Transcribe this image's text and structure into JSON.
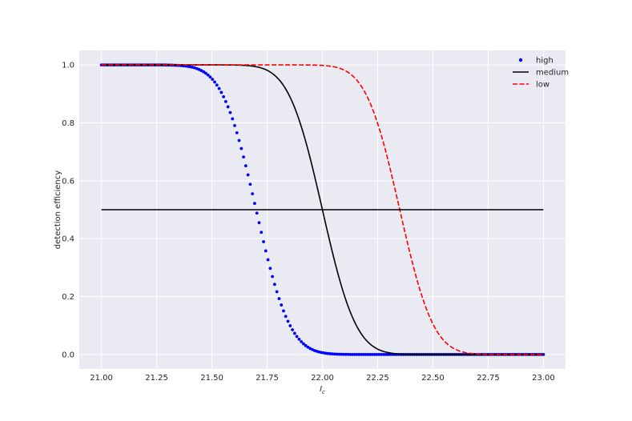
{
  "chart_data": {
    "type": "line",
    "xlabel": "I",
    "xlabel_sub": "c",
    "ylabel": "detection efficiency",
    "xlim": [
      20.9,
      23.1
    ],
    "ylim": [
      -0.05,
      1.05
    ],
    "xticks": [
      21.0,
      21.25,
      21.5,
      21.75,
      22.0,
      22.25,
      22.5,
      22.75,
      23.0
    ],
    "xtick_labels": [
      "21.00",
      "21.25",
      "21.50",
      "21.75",
      "22.00",
      "22.25",
      "22.50",
      "22.75",
      "23.00"
    ],
    "yticks": [
      0.0,
      0.2,
      0.4,
      0.6,
      0.8,
      1.0
    ],
    "ytick_labels": [
      "0.0",
      "0.2",
      "0.4",
      "0.6",
      "0.8",
      "1.0"
    ],
    "grid": true,
    "background_color": "#eaeaf2",
    "grid_color": "#ffffff",
    "legend_position": "top-right",
    "x_range": [
      21.0,
      23.0
    ],
    "series": [
      {
        "name": "high",
        "style": "dotted-markers",
        "color": "#0000ff",
        "curve": "1 - Φ((x - 21.70)/0.12)",
        "x": [
          21.0,
          21.2,
          21.4,
          21.5,
          21.6,
          21.65,
          21.7,
          21.75,
          21.8,
          21.9,
          22.0,
          22.2,
          22.5,
          23.0
        ],
        "y": [
          1.0,
          1.0,
          0.994,
          0.952,
          0.798,
          0.66,
          0.5,
          0.34,
          0.202,
          0.048,
          0.006,
          0.0,
          0.0,
          0.0
        ]
      },
      {
        "name": "medium",
        "style": "solid",
        "color": "#000000",
        "curve": "1 - Φ((x - 22.00)/0.12)",
        "x": [
          21.0,
          21.6,
          21.7,
          21.8,
          21.9,
          21.95,
          22.0,
          22.05,
          22.1,
          22.2,
          22.3,
          22.5,
          23.0
        ],
        "y": [
          1.0,
          1.0,
          0.994,
          0.952,
          0.798,
          0.66,
          0.5,
          0.34,
          0.202,
          0.048,
          0.006,
          0.0,
          0.0
        ]
      },
      {
        "name": "low",
        "style": "dashed",
        "color": "#ff0000",
        "curve": "1 - Φ((x - 22.35)/0.12)",
        "x": [
          21.0,
          22.0,
          22.1,
          22.2,
          22.3,
          22.35,
          22.4,
          22.5,
          22.6,
          22.7,
          22.8,
          23.0
        ],
        "y": [
          1.0,
          0.998,
          0.981,
          0.894,
          0.66,
          0.5,
          0.34,
          0.106,
          0.019,
          0.002,
          0.0,
          0.0
        ]
      },
      {
        "name": "",
        "style": "solid",
        "color": "#000000",
        "x": [
          21.0,
          23.0
        ],
        "y": [
          0.5,
          0.5
        ]
      }
    ]
  }
}
